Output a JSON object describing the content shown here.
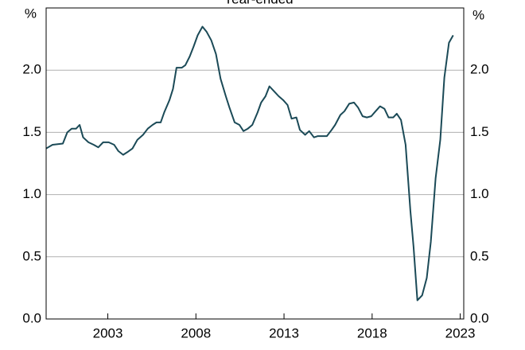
{
  "chart_data": {
    "type": "line",
    "title": "Year-ended",
    "y_unit": "%",
    "x": [
      1999.5,
      1999.86,
      2000.45,
      2000.7,
      2000.95,
      2001.2,
      2001.4,
      2001.6,
      2001.9,
      2002.2,
      2002.46,
      2002.73,
      2003.05,
      2003.36,
      2003.6,
      2003.87,
      2004.1,
      2004.4,
      2004.68,
      2005.0,
      2005.27,
      2005.54,
      2005.76,
      2006.0,
      2006.2,
      2006.5,
      2006.7,
      2006.9,
      2007.2,
      2007.4,
      2007.65,
      2007.87,
      2008.1,
      2008.37,
      2008.6,
      2008.87,
      2009.14,
      2009.4,
      2009.7,
      2009.9,
      2010.2,
      2010.47,
      2010.7,
      2010.95,
      2011.2,
      2011.5,
      2011.7,
      2011.95,
      2012.17,
      2012.44,
      2012.7,
      2012.95,
      2013.2,
      2013.43,
      2013.7,
      2013.9,
      2014.2,
      2014.43,
      2014.7,
      2014.92,
      2015.2,
      2015.43,
      2015.7,
      2015.9,
      2016.2,
      2016.43,
      2016.7,
      2016.97,
      2017.2,
      2017.46,
      2017.7,
      2017.95,
      2018.2,
      2018.45,
      2018.7,
      2018.93,
      2019.2,
      2019.4,
      2019.64,
      2019.9,
      2020.17,
      2020.35,
      2020.57,
      2020.84,
      2021.1,
      2021.33,
      2021.6,
      2021.87,
      2022.1,
      2022.36,
      2022.6
    ],
    "values": [
      1.37,
      1.4,
      1.41,
      1.5,
      1.53,
      1.53,
      1.56,
      1.46,
      1.42,
      1.4,
      1.38,
      1.42,
      1.42,
      1.4,
      1.35,
      1.32,
      1.34,
      1.37,
      1.44,
      1.48,
      1.53,
      1.56,
      1.58,
      1.58,
      1.66,
      1.76,
      1.85,
      2.02,
      2.02,
      2.04,
      2.11,
      2.19,
      2.28,
      2.35,
      2.31,
      2.24,
      2.13,
      1.93,
      1.79,
      1.7,
      1.58,
      1.56,
      1.51,
      1.53,
      1.56,
      1.66,
      1.74,
      1.79,
      1.87,
      1.83,
      1.79,
      1.76,
      1.72,
      1.61,
      1.62,
      1.52,
      1.48,
      1.51,
      1.46,
      1.47,
      1.47,
      1.47,
      1.52,
      1.56,
      1.64,
      1.67,
      1.73,
      1.74,
      1.7,
      1.63,
      1.62,
      1.63,
      1.67,
      1.71,
      1.69,
      1.62,
      1.62,
      1.65,
      1.6,
      1.4,
      0.87,
      0.58,
      0.15,
      0.19,
      0.33,
      0.62,
      1.13,
      1.44,
      1.94,
      2.22,
      2.28
    ],
    "color": "#1b4a57",
    "xlim": [
      1999.5,
      2023.2
    ],
    "xticks": [
      2003,
      2008,
      2013,
      2018,
      2023
    ],
    "ylim": [
      0,
      2.5
    ],
    "yticks": [
      {
        "value": 0,
        "label": "0.0"
      },
      0.5,
      {
        "value": 1,
        "label": "1.0"
      },
      1.5,
      {
        "value": 2,
        "label": "2.0"
      }
    ],
    "grid": true
  }
}
